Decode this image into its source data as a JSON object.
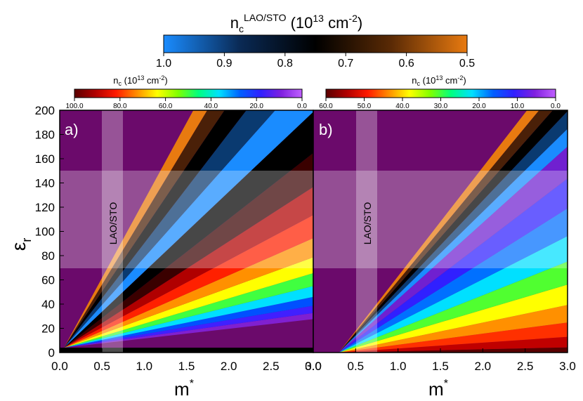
{
  "top_colorbar": {
    "title_main": "n",
    "title_sub": "c",
    "title_sup": "LAO/STO",
    "title_unit_open": " (10",
    "title_unit_exp": "13",
    "title_unit_mid": " cm",
    "title_unit_exp2": "-2",
    "title_unit_close": ")",
    "ticks": [
      "1.0",
      "0.9",
      "0.8",
      "0.7",
      "0.6",
      "0.5"
    ],
    "range": [
      1.0,
      0.5
    ],
    "colors": [
      "#1a8cff",
      "#0a2a55",
      "#000000",
      "#5a2a05",
      "#e87a10"
    ]
  },
  "colorbar_a": {
    "label_n": "n",
    "label_c": "c",
    "label_rest": " (10",
    "label_exp": "13",
    "label_cm": " cm",
    "label_exp2": "-2",
    "label_close": ")",
    "ticks": [
      "100.0",
      "80.0",
      "60.0",
      "40.0",
      "20.0",
      "0.0"
    ],
    "range": [
      100,
      0
    ]
  },
  "colorbar_b": {
    "label_n": "n",
    "label_c": "c",
    "label_rest": " (10",
    "label_exp": "13",
    "label_cm": " cm",
    "label_exp2": "-2",
    "label_close": ")",
    "ticks": [
      "60.0",
      "50.0",
      "40.0",
      "30.0",
      "20.0",
      "10.0",
      "0.0"
    ],
    "range": [
      60,
      0
    ]
  },
  "panels": {
    "a_label": "a)",
    "b_label": "b)",
    "band_label": "LAO/STO",
    "x_ticks": [
      "0.0",
      "0.5",
      "1.0",
      "1.5",
      "2.0",
      "2.5",
      "3.0"
    ],
    "y_ticks": [
      "0",
      "20",
      "40",
      "60",
      "80",
      "100",
      "120",
      "140",
      "160",
      "180",
      "200"
    ],
    "xlabel": "m",
    "xlabel_sup": "*",
    "ylabel": "ε",
    "ylabel_sub": "r"
  },
  "chart_data": [
    {
      "type": "heatmap",
      "title": "",
      "xlabel": "m*",
      "ylabel": "εr",
      "xlim": [
        0,
        3
      ],
      "ylim": [
        0,
        200
      ],
      "colorbar": "nc (10^13 cm^-2)",
      "colorbar_range": [
        0,
        100
      ],
      "lao_sto_window": {
        "m_star": [
          0.5,
          0.75
        ],
        "eps_r": [
          70,
          150
        ]
      },
      "highlight_band": {
        "slope_low": 66,
        "slope_high": 128,
        "range": [
          0.5,
          1.0
        ]
      },
      "mid_band": {
        "slope_low": 8,
        "slope_high": 66
      },
      "floor_band_eps_r": [
        0,
        4
      ]
    },
    {
      "type": "heatmap",
      "title": "",
      "xlabel": "m*",
      "ylabel": "εr",
      "xlim": [
        0,
        3
      ],
      "ylim": [
        0,
        200
      ],
      "colorbar": "nc (10^13 cm^-2)",
      "colorbar_range": [
        0,
        60
      ],
      "lao_sto_window": {
        "m_star": [
          0.5,
          0.75
        ],
        "eps_r": [
          70,
          150
        ]
      },
      "highlight_band": {
        "slope_low": 63,
        "slope_high": 90,
        "range": [
          0.5,
          1.0
        ]
      },
      "mid_band": {
        "slope_low": 0,
        "slope_high": 63
      }
    }
  ]
}
